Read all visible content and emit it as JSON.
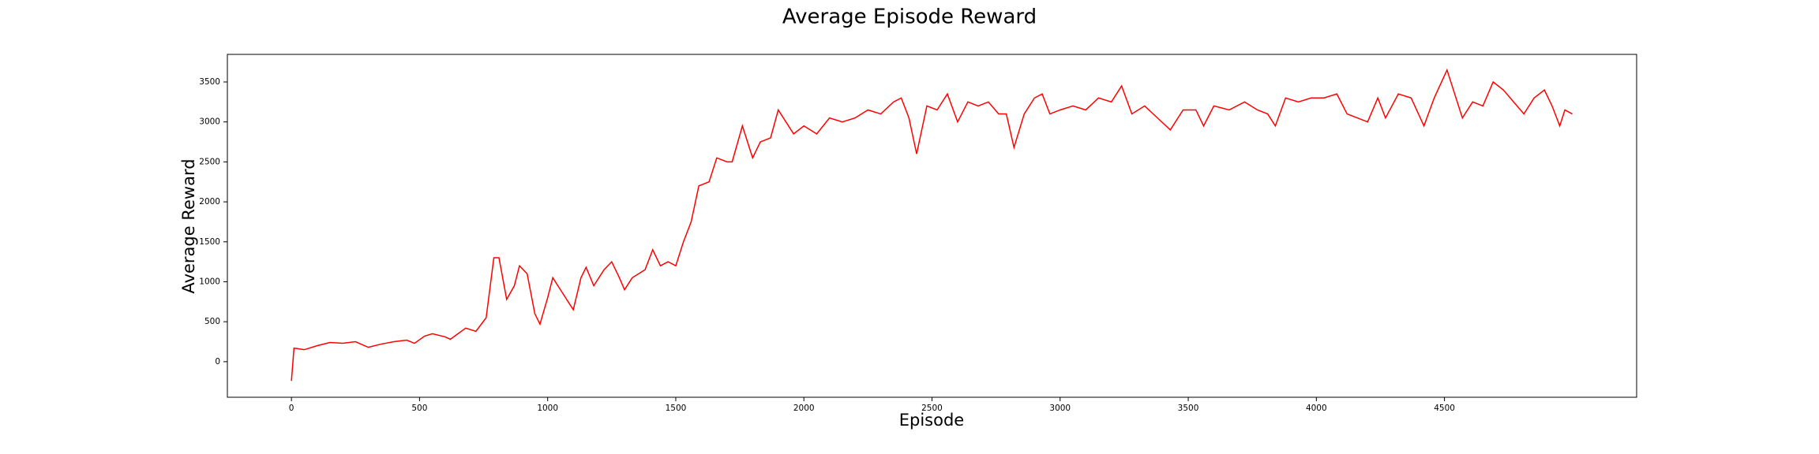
{
  "chart_data": {
    "type": "line",
    "title": "Average Episode Reward",
    "x_label": "Episode",
    "y_label": "Average Reward",
    "x": [
      0,
      10,
      50,
      100,
      150,
      200,
      250,
      300,
      350,
      400,
      450,
      480,
      520,
      550,
      600,
      620,
      680,
      720,
      760,
      790,
      810,
      840,
      870,
      890,
      920,
      950,
      970,
      1000,
      1020,
      1050,
      1080,
      1100,
      1130,
      1150,
      1180,
      1220,
      1250,
      1280,
      1300,
      1330,
      1380,
      1410,
      1440,
      1470,
      1500,
      1530,
      1560,
      1590,
      1630,
      1660,
      1700,
      1720,
      1760,
      1800,
      1830,
      1870,
      1900,
      1930,
      1960,
      2000,
      2050,
      2100,
      2150,
      2200,
      2250,
      2300,
      2350,
      2380,
      2410,
      2440,
      2480,
      2520,
      2560,
      2600,
      2640,
      2680,
      2720,
      2760,
      2790,
      2820,
      2860,
      2900,
      2930,
      2960,
      3000,
      3050,
      3100,
      3150,
      3200,
      3240,
      3280,
      3330,
      3380,
      3430,
      3480,
      3530,
      3560,
      3600,
      3660,
      3720,
      3770,
      3810,
      3840,
      3880,
      3930,
      3980,
      4030,
      4080,
      4120,
      4160,
      4200,
      4240,
      4270,
      4320,
      4370,
      4420,
      4460,
      4510,
      4540,
      4570,
      4610,
      4650,
      4690,
      4730,
      4770,
      4810,
      4850,
      4890,
      4920,
      4950,
      4970,
      4999
    ],
    "series": [
      {
        "name": "Average Reward",
        "color": "#ff0000",
        "values": [
          -240,
          170,
          150,
          200,
          240,
          230,
          250,
          180,
          220,
          250,
          270,
          230,
          320,
          350,
          310,
          280,
          420,
          380,
          550,
          1300,
          1300,
          780,
          950,
          1200,
          1100,
          600,
          470,
          800,
          1050,
          900,
          750,
          650,
          1050,
          1180,
          950,
          1150,
          1250,
          1050,
          900,
          1050,
          1150,
          1400,
          1200,
          1250,
          1200,
          1500,
          1750,
          2200,
          2250,
          2550,
          2500,
          2500,
          2950,
          2550,
          2750,
          2800,
          3150,
          3000,
          2850,
          2950,
          2850,
          3050,
          3000,
          3050,
          3150,
          3100,
          3250,
          3300,
          3050,
          2600,
          3200,
          3150,
          3350,
          3000,
          3250,
          3200,
          3250,
          3100,
          3100,
          2680,
          3100,
          3300,
          3350,
          3100,
          3150,
          3200,
          3150,
          3300,
          3250,
          3450,
          3100,
          3200,
          3050,
          2900,
          3150,
          3150,
          2950,
          3200,
          3150,
          3250,
          3150,
          3100,
          2950,
          3300,
          3250,
          3300,
          3300,
          3350,
          3100,
          3050,
          3000,
          3300,
          3050,
          3350,
          3300,
          2950,
          3300,
          3650,
          3350,
          3050,
          3250,
          3200,
          3500,
          3400,
          3250,
          3100,
          3300,
          3400,
          3200,
          2950,
          3150,
          3100
        ]
      }
    ],
    "xlim": [
      -250,
      5250
    ],
    "ylim": [
      -445,
      3845
    ],
    "xticks": [
      0,
      500,
      1000,
      1500,
      2000,
      2500,
      3000,
      3500,
      4000,
      4500
    ],
    "yticks": [
      0,
      500,
      1000,
      1500,
      2000,
      2500,
      3000,
      3500
    ]
  }
}
